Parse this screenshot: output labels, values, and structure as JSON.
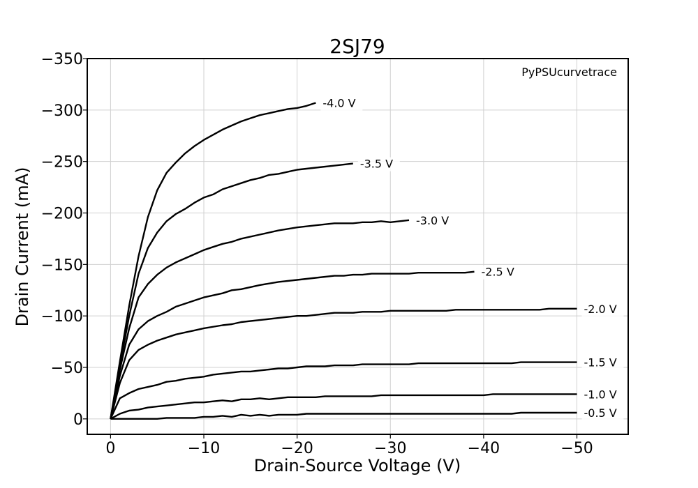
{
  "chart_data": {
    "type": "line",
    "title": "2SJ79",
    "xlabel": "Drain-Source Voltage (V)",
    "ylabel": "Drain Current (mA)",
    "annotation": "PyPSUcurvetrace",
    "xlim": [
      2.5,
      -55.5
    ],
    "ylim": [
      15,
      -350
    ],
    "x_ticks": [
      0,
      -10,
      -20,
      -30,
      -40,
      -50
    ],
    "x_tick_labels": [
      "0",
      "−10",
      "−20",
      "−30",
      "−40",
      "−50"
    ],
    "y_ticks": [
      0,
      -50,
      -100,
      -150,
      -200,
      -250,
      -300,
      -350
    ],
    "y_tick_labels": [
      "0",
      "−50",
      "−100",
      "−150",
      "−200",
      "−250",
      "−300",
      "−350"
    ],
    "grid": true,
    "series": [
      {
        "name": "-4.0 V",
        "x": [
          0,
          -1,
          -2,
          -3,
          -4,
          -5,
          -6,
          -7,
          -8,
          -9,
          -10,
          -11,
          -12,
          -13,
          -14,
          -15,
          -16,
          -17,
          -18,
          -19,
          -20,
          -21,
          -22
        ],
        "y": [
          0,
          -56,
          -110,
          -158,
          -196,
          -222,
          -239,
          -249,
          -258,
          -265,
          -271,
          -276,
          -281,
          -285,
          -289,
          -292,
          -295,
          -297,
          -299,
          -301,
          -302,
          -304,
          -307
        ]
      },
      {
        "name": "-3.5 V",
        "x": [
          0,
          -1,
          -2,
          -3,
          -4,
          -5,
          -6,
          -7,
          -8,
          -9,
          -10,
          -11,
          -12,
          -13,
          -14,
          -15,
          -16,
          -17,
          -18,
          -19,
          -20,
          -22,
          -24,
          -26
        ],
        "y": [
          0,
          -52,
          -100,
          -141,
          -166,
          -181,
          -192,
          -199,
          -204,
          -210,
          -215,
          -218,
          -223,
          -226,
          -229,
          -232,
          -234,
          -237,
          -238,
          -240,
          -242,
          -244,
          -246,
          -248
        ]
      },
      {
        "name": "-3.0 V",
        "x": [
          0,
          -1,
          -2,
          -3,
          -4,
          -5,
          -6,
          -7,
          -8,
          -9,
          -10,
          -11,
          -12,
          -13,
          -14,
          -16,
          -18,
          -20,
          -22,
          -24,
          -25,
          -26,
          -27,
          -28,
          -29,
          -30,
          -32
        ],
        "y": [
          0,
          -48,
          -88,
          -118,
          -131,
          -140,
          -147,
          -152,
          -156,
          -160,
          -164,
          -167,
          -170,
          -172,
          -175,
          -179,
          -183,
          -186,
          -188,
          -190,
          -190,
          -190,
          -191,
          -191,
          -192,
          -191,
          -193
        ]
      },
      {
        "name": "-2.5 V",
        "x": [
          0,
          -1,
          -2,
          -3,
          -4,
          -5,
          -6,
          -7,
          -8,
          -9,
          -10,
          -12,
          -13,
          -14,
          -16,
          -18,
          -20,
          -22,
          -24,
          -25,
          -26,
          -27,
          -28,
          -30,
          -32,
          -33,
          -35,
          -37,
          -38,
          -39
        ],
        "y": [
          0,
          -42,
          -72,
          -87,
          -95,
          -100,
          -104,
          -109,
          -112,
          -115,
          -118,
          -122,
          -125,
          -126,
          -130,
          -133,
          -135,
          -137,
          -139,
          -139,
          -140,
          -140,
          -141,
          -141,
          -141,
          -142,
          -142,
          -142,
          -142,
          -143
        ]
      },
      {
        "name": "-2.0 V",
        "x": [
          0,
          -1,
          -2,
          -3,
          -4,
          -5,
          -6,
          -7,
          -8,
          -9,
          -10,
          -12,
          -13,
          -14,
          -16,
          -18,
          -20,
          -21,
          -22,
          -24,
          -26,
          -27,
          -28,
          -29,
          -30,
          -32,
          -34,
          -36,
          -37,
          -40,
          -42,
          -44,
          -46,
          -47,
          -48,
          -50
        ],
        "y": [
          0,
          -35,
          -57,
          -67,
          -72,
          -76,
          -79,
          -82,
          -84,
          -86,
          -88,
          -91,
          -92,
          -94,
          -96,
          -98,
          -100,
          -100,
          -101,
          -103,
          -103,
          -104,
          -104,
          -104,
          -105,
          -105,
          -105,
          -105,
          -106,
          -106,
          -106,
          -106,
          -106,
          -107,
          -107,
          -107
        ]
      },
      {
        "name": "-1.5 V",
        "x": [
          0,
          -1,
          -2,
          -3,
          -4,
          -5,
          -6,
          -7,
          -8,
          -9,
          -10,
          -11,
          -12,
          -13,
          -14,
          -15,
          -16,
          -17,
          -18,
          -19,
          -20,
          -21,
          -22,
          -23,
          -24,
          -25,
          -26,
          -27,
          -28,
          -30,
          -32,
          -33,
          -35,
          -37,
          -40,
          -43,
          -44,
          -46,
          -50
        ],
        "y": [
          0,
          -20,
          -25,
          -29,
          -31,
          -33,
          -36,
          -37,
          -39,
          -40,
          -41,
          -43,
          -44,
          -45,
          -46,
          -46,
          -47,
          -48,
          -49,
          -49,
          -50,
          -51,
          -51,
          -51,
          -52,
          -52,
          -52,
          -53,
          -53,
          -53,
          -53,
          -54,
          -54,
          -54,
          -54,
          -54,
          -55,
          -55,
          -55
        ]
      },
      {
        "name": "-1.0 V",
        "x": [
          0,
          -1,
          -2,
          -3,
          -4,
          -5,
          -6,
          -7,
          -8,
          -9,
          -10,
          -11,
          -12,
          -13,
          -14,
          -15,
          -16,
          -17,
          -18,
          -19,
          -20,
          -22,
          -23,
          -25,
          -28,
          -29,
          -30,
          -35,
          -40,
          -41,
          -45,
          -50
        ],
        "y": [
          0,
          -5,
          -8,
          -9,
          -11,
          -12,
          -13,
          -14,
          -15,
          -16,
          -16,
          -17,
          -18,
          -17,
          -19,
          -19,
          -20,
          -19,
          -20,
          -21,
          -21,
          -21,
          -22,
          -22,
          -22,
          -23,
          -23,
          -23,
          -23,
          -24,
          -24,
          -24
        ]
      },
      {
        "name": "-0.5 V",
        "x": [
          0,
          -1,
          -2,
          -3,
          -4,
          -5,
          -6,
          -7,
          -8,
          -9,
          -10,
          -11,
          -12,
          -13,
          -14,
          -15,
          -16,
          -17,
          -18,
          -19,
          -20,
          -21,
          -22,
          -25,
          -30,
          -35,
          -40,
          -43,
          -44,
          -47,
          -50
        ],
        "y": [
          0,
          0,
          0,
          0,
          0,
          0,
          -1,
          -1,
          -1,
          -1,
          -2,
          -2,
          -3,
          -2,
          -4,
          -3,
          -4,
          -3,
          -4,
          -4,
          -4,
          -5,
          -5,
          -5,
          -5,
          -5,
          -5,
          -5,
          -6,
          -6,
          -6
        ]
      }
    ]
  }
}
